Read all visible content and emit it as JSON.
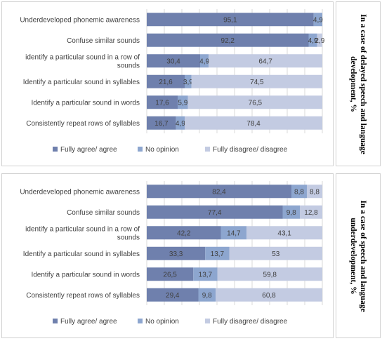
{
  "colors": {
    "agree": "#6f80ad",
    "no_opinion": "#8da6cf",
    "disagree": "#c3cbe2",
    "grid": "#d9d9d9",
    "text": "#404040"
  },
  "chart_data": [
    {
      "type": "bar",
      "orientation": "horizontal",
      "stacked": true,
      "title": "",
      "side_label_lines": [
        "In a case of delayed speech and language",
        "development, %"
      ],
      "categories": [
        [
          "Underdeveloped phonemic awareness"
        ],
        [
          "Confuse similar sounds"
        ],
        [
          "identify a particular sound in a row of",
          "sounds"
        ],
        [
          "Identify a particular sound in syllables"
        ],
        [
          "Identify a particular sound in words"
        ],
        [
          "Consistently repeat rows of syllables"
        ]
      ],
      "series": [
        {
          "name": "Fully agree/ agree",
          "color_key": "agree",
          "values": [
            95.1,
            92.2,
            30.4,
            21.6,
            17.6,
            16.7
          ],
          "labels": [
            "95,1",
            "92,2",
            "30,4",
            "21,6",
            "17,6",
            "16,7"
          ]
        },
        {
          "name": "No opinion",
          "color_key": "no_opinion",
          "values": [
            4.9,
            4.9,
            4.9,
            3.9,
            5.9,
            4.9
          ],
          "labels": [
            "4,9",
            "4,9",
            "4,9",
            "3,9",
            "5,9",
            "4,9"
          ]
        },
        {
          "name": "Fully disagree/ disagree",
          "color_key": "disagree",
          "values": [
            0,
            2.9,
            64.7,
            74.5,
            76.5,
            78.4
          ],
          "labels": [
            "",
            "2,9",
            "64,7",
            "74,5",
            "76,5",
            "78,4"
          ]
        }
      ],
      "xlim": [
        0,
        100
      ],
      "grid": true,
      "legend": "bottom"
    },
    {
      "type": "bar",
      "orientation": "horizontal",
      "stacked": true,
      "title": "",
      "side_label_lines": [
        "In a case of speech and language",
        "underdevelopment, %"
      ],
      "categories": [
        [
          "Underdeveloped phonemic awareness"
        ],
        [
          "Confuse similar sounds"
        ],
        [
          "identify a particular sound in a row of",
          "sounds"
        ],
        [
          "Identify a particular sound in syllables"
        ],
        [
          "Identify a particular sound in words"
        ],
        [
          "Consistently repeat rows of syllables"
        ]
      ],
      "series": [
        {
          "name": "Fully agree/ agree",
          "color_key": "agree",
          "values": [
            82.4,
            77.4,
            42.2,
            33.3,
            26.5,
            29.4
          ],
          "labels": [
            "82,4",
            "77,4",
            "42,2",
            "33,3",
            "26,5",
            "29,4"
          ]
        },
        {
          "name": "No opinion",
          "color_key": "no_opinion",
          "values": [
            8.8,
            9.8,
            14.7,
            13.7,
            13.7,
            9.8
          ],
          "labels": [
            "8,8",
            "9,8",
            "14,7",
            "13,7",
            "13,7",
            "9,8"
          ]
        },
        {
          "name": "Fully disagree/ disagree",
          "color_key": "disagree",
          "values": [
            8.8,
            12.8,
            43.1,
            53,
            59.8,
            60.8
          ],
          "labels": [
            "8,8",
            "12,8",
            "43,1",
            "53",
            "59,8",
            "60,8"
          ]
        }
      ],
      "xlim": [
        0,
        100
      ],
      "grid": true,
      "legend": "bottom"
    }
  ]
}
